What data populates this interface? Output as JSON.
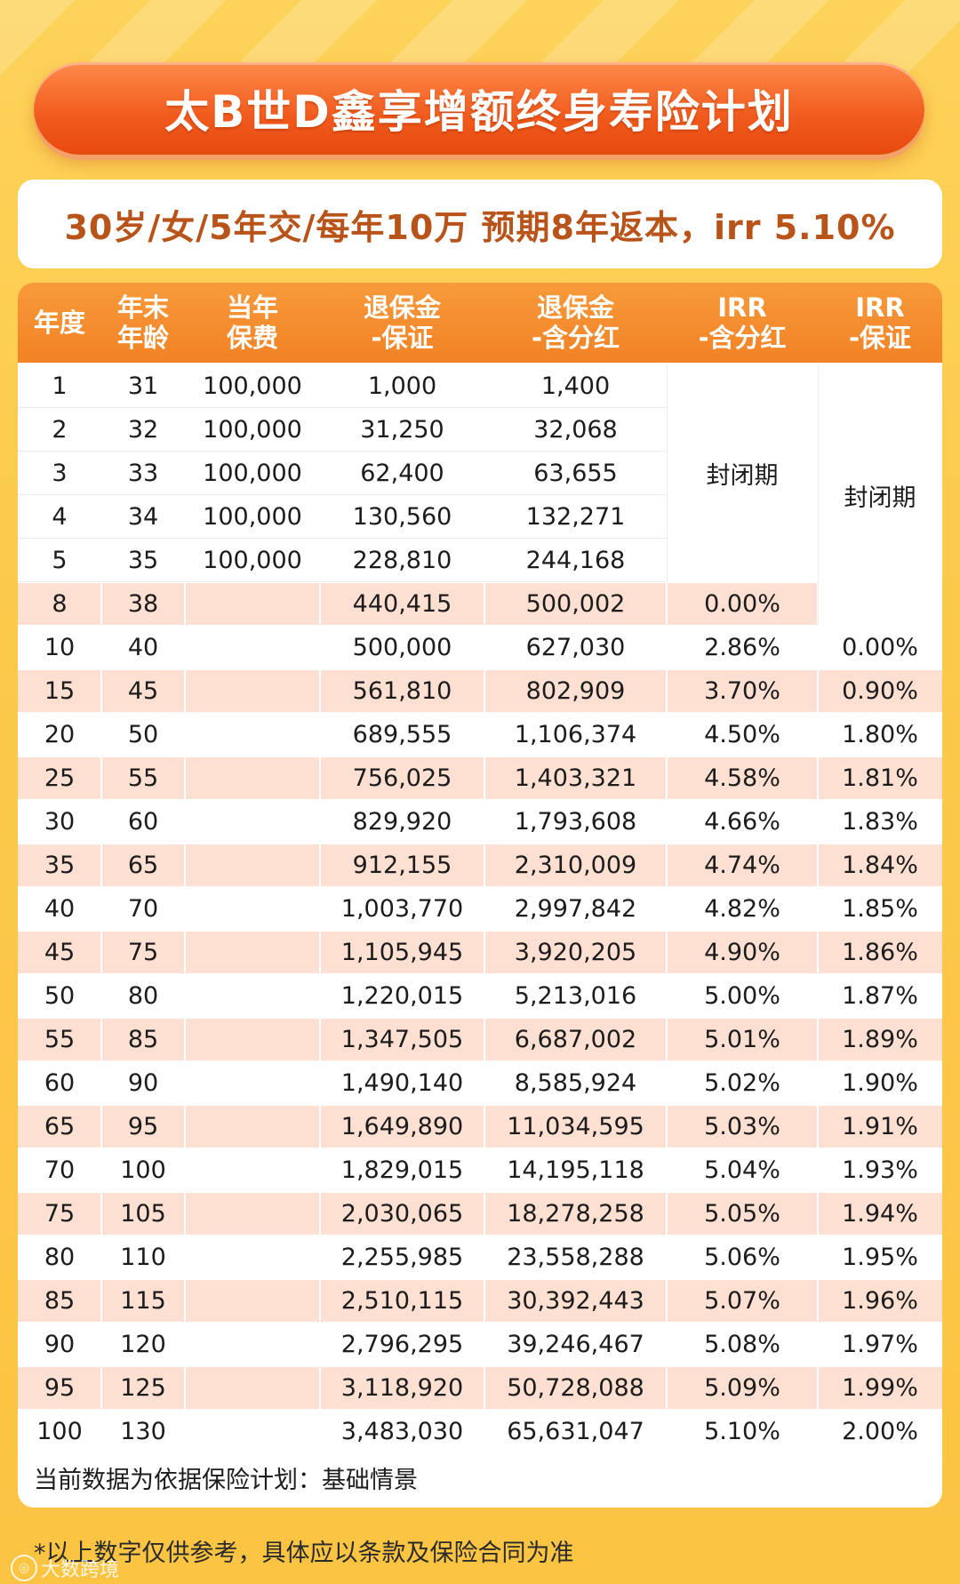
{
  "title": "太B世D鑫享增额终身寿险计划",
  "subtitle": "30岁/女/5年交/每年10万  预期8年返本，irr 5.10%",
  "headers": [
    [
      "年度"
    ],
    [
      "年末",
      "年龄"
    ],
    [
      "当年",
      "保费"
    ],
    [
      "退保金",
      "-保证"
    ],
    [
      "退保金",
      "-含分红"
    ],
    [
      "IRR",
      "-含分红"
    ],
    [
      "IRR",
      "-保证"
    ]
  ],
  "closed_period_label": "封闭期",
  "rows": [
    [
      "1",
      "31",
      "100,000",
      "1,000",
      "1,400",
      "",
      ""
    ],
    [
      "2",
      "32",
      "100,000",
      "31,250",
      "32,068",
      "",
      ""
    ],
    [
      "3",
      "33",
      "100,000",
      "62,400",
      "63,655",
      "",
      ""
    ],
    [
      "4",
      "34",
      "100,000",
      "130,560",
      "132,271",
      "",
      ""
    ],
    [
      "5",
      "35",
      "100,000",
      "228,810",
      "244,168",
      "",
      ""
    ],
    [
      "8",
      "38",
      "",
      "440,415",
      "500,002",
      "0.00%",
      ""
    ],
    [
      "10",
      "40",
      "",
      "500,000",
      "627,030",
      "2.86%",
      "0.00%"
    ],
    [
      "15",
      "45",
      "",
      "561,810",
      "802,909",
      "3.70%",
      "0.90%"
    ],
    [
      "20",
      "50",
      "",
      "689,555",
      "1,106,374",
      "4.50%",
      "1.80%"
    ],
    [
      "25",
      "55",
      "",
      "756,025",
      "1,403,321",
      "4.58%",
      "1.81%"
    ],
    [
      "30",
      "60",
      "",
      "829,920",
      "1,793,608",
      "4.66%",
      "1.83%"
    ],
    [
      "35",
      "65",
      "",
      "912,155",
      "2,310,009",
      "4.74%",
      "1.84%"
    ],
    [
      "40",
      "70",
      "",
      "1,003,770",
      "2,997,842",
      "4.82%",
      "1.85%"
    ],
    [
      "45",
      "75",
      "",
      "1,105,945",
      "3,920,205",
      "4.90%",
      "1.86%"
    ],
    [
      "50",
      "80",
      "",
      "1,220,015",
      "5,213,016",
      "5.00%",
      "1.87%"
    ],
    [
      "55",
      "85",
      "",
      "1,347,505",
      "6,687,002",
      "5.01%",
      "1.89%"
    ],
    [
      "60",
      "90",
      "",
      "1,490,140",
      "8,585,924",
      "5.02%",
      "1.90%"
    ],
    [
      "65",
      "95",
      "",
      "1,649,890",
      "11,034,595",
      "5.03%",
      "1.91%"
    ],
    [
      "70",
      "100",
      "",
      "1,829,015",
      "14,195,118",
      "5.04%",
      "1.93%"
    ],
    [
      "75",
      "105",
      "",
      "2,030,065",
      "18,278,258",
      "5.05%",
      "1.94%"
    ],
    [
      "80",
      "110",
      "",
      "2,255,985",
      "23,558,288",
      "5.06%",
      "1.95%"
    ],
    [
      "85",
      "115",
      "",
      "2,510,115",
      "30,392,443",
      "5.07%",
      "1.96%"
    ],
    [
      "90",
      "120",
      "",
      "2,796,295",
      "39,246,467",
      "5.08%",
      "1.97%"
    ],
    [
      "95",
      "125",
      "",
      "3,118,920",
      "50,728,088",
      "5.09%",
      "1.99%"
    ],
    [
      "100",
      "130",
      "",
      "3,483,030",
      "65,631,047",
      "5.10%",
      "2.00%"
    ]
  ],
  "note": "当前数据为依据保险计划：基础情景",
  "footer": "*以上数字仅供参考，具体应以条款及保险合同为准",
  "watermark": "大数跨境",
  "colors": {
    "banner": "#f05a1c",
    "header": "#f28226",
    "row_tint": "#fde0d2",
    "subtitle_text": "#b8531a",
    "background": "#fcc94a"
  }
}
